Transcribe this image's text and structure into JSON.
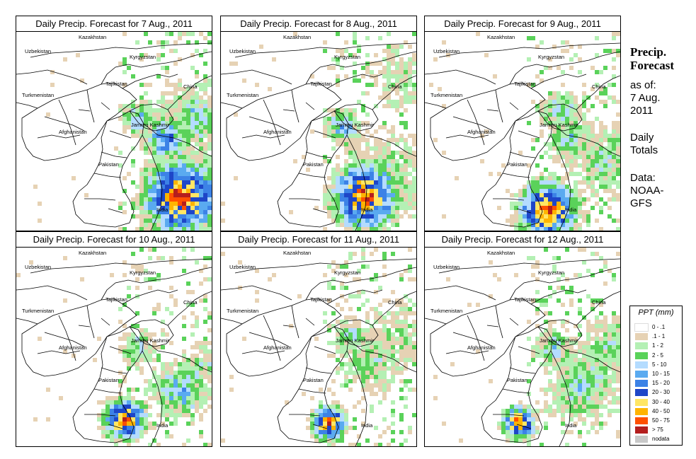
{
  "panels": [
    {
      "title": "Daily Precip. Forecast for  7 Aug., 2011"
    },
    {
      "title": "Daily Precip. Forecast for  8 Aug., 2011"
    },
    {
      "title": "Daily Precip. Forecast for  9 Aug., 2011"
    },
    {
      "title": "Daily Precip. Forecast for  10 Aug., 2011"
    },
    {
      "title": "Daily Precip. Forecast for  11 Aug., 2011"
    },
    {
      "title": "Daily Precip. Forecast for  12 Aug., 2011"
    }
  ],
  "map_labels": {
    "kazakhstan": "Kazakhstan",
    "uzbekistan": "Uzbekistan",
    "kyrgyzstan": "Kyrgyzstan",
    "tajikistan": "Tajikistan",
    "turkmenistan": "Turkmenistan",
    "china": "China",
    "afghanistan": "Afghanistan",
    "jammu_kashmir": "Jammu Kashmir",
    "pakistan": "Pakistan",
    "india": "India"
  },
  "sidebar": {
    "title_line1": "Precip.",
    "title_line2": "Forecast",
    "asof_line1": "as of:",
    "asof_line2": "7 Aug.",
    "asof_line3": "2011",
    "daily_line1": "Daily",
    "daily_line2": "Totals",
    "data_line1": "Data:",
    "data_line2": "NOAA-",
    "data_line3": "GFS"
  },
  "legend": {
    "title": "PPT (mm)",
    "entries": [
      {
        "label": "0 - .1",
        "color": "#ffffff"
      },
      {
        "label": ".1 - 1",
        "color": "#e6d2b4"
      },
      {
        "label": "1 - 2",
        "color": "#b4f0b4"
      },
      {
        "label": "2 - 5",
        "color": "#5ad25a"
      },
      {
        "label": "5 - 10",
        "color": "#b4dcff"
      },
      {
        "label": "10 - 15",
        "color": "#5aaaf0"
      },
      {
        "label": "15 - 20",
        "color": "#3c82e6"
      },
      {
        "label": "20 - 30",
        "color": "#1e46c8"
      },
      {
        "label": "30 - 40",
        "color": "#ffe664"
      },
      {
        "label": "40 - 50",
        "color": "#ffb400"
      },
      {
        "label": "50 - 75",
        "color": "#ff5000"
      },
      {
        "label": "> 75",
        "color": "#b41e1e"
      },
      {
        "label": "nodata",
        "color": "#c8c8c8"
      }
    ]
  }
}
